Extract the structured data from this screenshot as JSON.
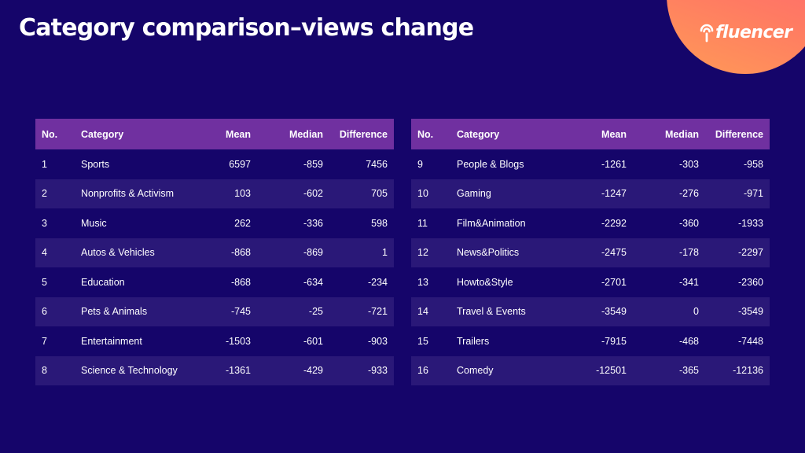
{
  "title": "Category comparison–views change",
  "logo": {
    "text": "fluencer",
    "icon": "signal-waves-icon"
  },
  "colors": {
    "background": "#15056a",
    "header": "#7030a0",
    "stripe": "#2a1878",
    "accent": "#ff7066"
  },
  "headers": {
    "no": "No.",
    "category": "Category",
    "mean": "Mean",
    "median": "Median",
    "difference": "Difference"
  },
  "left_rows": [
    {
      "no": "1",
      "category": "Sports",
      "mean": "6597",
      "median": "-859",
      "difference": "7456"
    },
    {
      "no": "2",
      "category": "Nonprofits & Activism",
      "mean": "103",
      "median": "-602",
      "difference": "705"
    },
    {
      "no": "3",
      "category": "Music",
      "mean": "262",
      "median": "-336",
      "difference": "598"
    },
    {
      "no": "4",
      "category": "Autos & Vehicles",
      "mean": "-868",
      "median": "-869",
      "difference": "1"
    },
    {
      "no": "5",
      "category": "Education",
      "mean": "-868",
      "median": "-634",
      "difference": "-234"
    },
    {
      "no": "6",
      "category": "Pets & Animals",
      "mean": "-745",
      "median": "-25",
      "difference": "-721"
    },
    {
      "no": "7",
      "category": "Entertainment",
      "mean": "-1503",
      "median": "-601",
      "difference": "-903"
    },
    {
      "no": "8",
      "category": "Science & Technology",
      "mean": "-1361",
      "median": "-429",
      "difference": "-933"
    }
  ],
  "right_rows": [
    {
      "no": "9",
      "category": "People & Blogs",
      "mean": "-1261",
      "median": "-303",
      "difference": "-958"
    },
    {
      "no": "10",
      "category": "Gaming",
      "mean": "-1247",
      "median": "-276",
      "difference": "-971"
    },
    {
      "no": "11",
      "category": "Film&Animation",
      "mean": "-2292",
      "median": "-360",
      "difference": "-1933"
    },
    {
      "no": "12",
      "category": "News&Politics",
      "mean": "-2475",
      "median": "-178",
      "difference": "-2297"
    },
    {
      "no": "13",
      "category": "Howto&Style",
      "mean": "-2701",
      "median": "-341",
      "difference": "-2360"
    },
    {
      "no": "14",
      "category": "Travel & Events",
      "mean": "-3549",
      "median": "0",
      "difference": "-3549"
    },
    {
      "no": "15",
      "category": "Trailers",
      "mean": "-7915",
      "median": "-468",
      "difference": "-7448"
    },
    {
      "no": "16",
      "category": "Comedy",
      "mean": "-12501",
      "median": "-365",
      "difference": "-12136"
    }
  ]
}
